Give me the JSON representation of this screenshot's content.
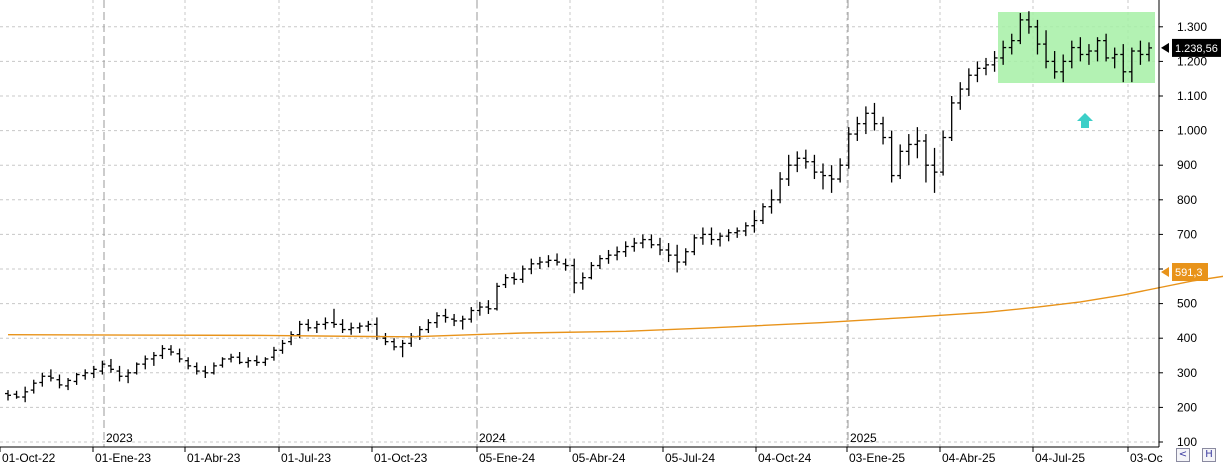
{
  "chart_data": {
    "type": "ohlc",
    "y_ticks": [
      "100",
      "200",
      "300",
      "400",
      "500",
      "600",
      "700",
      "800",
      "900",
      "1.000",
      "1.100",
      "1.200",
      "1.300"
    ],
    "ylim": [
      100,
      1340
    ],
    "x_ticks": [
      "01-Oct-22",
      "01-Ene-23",
      "01-Abr-23",
      "01-Jul-23",
      "01-Oct-23",
      "05-Ene-24",
      "05-Abr-24",
      "05-Jul-24",
      "04-Oct-24",
      "03-Ene-25",
      "04-Abr-25",
      "04-Jul-25",
      "03-Oc"
    ],
    "year_labels": [
      "2023",
      "2024",
      "2025"
    ],
    "grid": true,
    "last_price_label": "1.238,56",
    "moving_average_label": "591,3",
    "colors": {
      "bars": "#000000",
      "moving_average": "#e8931a",
      "range_box": "#a6f0a6",
      "arrow": "#3ccfc8",
      "grid": "#c8c8c8"
    },
    "series": [
      {
        "values": [
          [
            240,
            250,
            220,
            235
          ],
          [
            238,
            248,
            225,
            230
          ],
          [
            230,
            260,
            215,
            245
          ],
          [
            250,
            280,
            240,
            270
          ],
          [
            272,
            300,
            260,
            290
          ],
          [
            290,
            310,
            275,
            285
          ],
          [
            280,
            295,
            255,
            265
          ],
          [
            262,
            285,
            250,
            278
          ],
          [
            275,
            300,
            265,
            295
          ],
          [
            292,
            310,
            280,
            300
          ],
          [
            298,
            320,
            285,
            310
          ],
          [
            305,
            335,
            295,
            325
          ],
          [
            320,
            340,
            300,
            310
          ],
          [
            305,
            320,
            275,
            290
          ],
          [
            290,
            310,
            270,
            300
          ],
          [
            300,
            330,
            295,
            325
          ],
          [
            325,
            350,
            310,
            340
          ],
          [
            340,
            360,
            320,
            350
          ],
          [
            350,
            380,
            340,
            370
          ],
          [
            368,
            380,
            350,
            360
          ],
          [
            355,
            370,
            330,
            340
          ],
          [
            335,
            345,
            310,
            320
          ],
          [
            318,
            330,
            295,
            305
          ],
          [
            305,
            320,
            285,
            300
          ],
          [
            300,
            330,
            295,
            320
          ],
          [
            322,
            345,
            315,
            340
          ],
          [
            340,
            355,
            330,
            345
          ],
          [
            345,
            360,
            325,
            330
          ],
          [
            330,
            345,
            315,
            335
          ],
          [
            335,
            350,
            320,
            330
          ],
          [
            330,
            345,
            320,
            340
          ],
          [
            345,
            375,
            335,
            365
          ],
          [
            365,
            395,
            355,
            385
          ],
          [
            390,
            420,
            380,
            410
          ],
          [
            410,
            450,
            400,
            440
          ],
          [
            440,
            455,
            420,
            430
          ],
          [
            430,
            450,
            415,
            440
          ],
          [
            440,
            460,
            425,
            445
          ],
          [
            445,
            485,
            430,
            440
          ],
          [
            440,
            455,
            415,
            425
          ],
          [
            425,
            445,
            410,
            430
          ],
          [
            430,
            445,
            415,
            435
          ],
          [
            435,
            450,
            420,
            440
          ],
          [
            440,
            460,
            395,
            405
          ],
          [
            400,
            415,
            380,
            390
          ],
          [
            390,
            400,
            365,
            375
          ],
          [
            375,
            395,
            345,
            385
          ],
          [
            385,
            415,
            375,
            405
          ],
          [
            405,
            435,
            395,
            425
          ],
          [
            425,
            455,
            415,
            445
          ],
          [
            445,
            475,
            430,
            465
          ],
          [
            465,
            485,
            445,
            460
          ],
          [
            455,
            470,
            435,
            450
          ],
          [
            450,
            465,
            425,
            455
          ],
          [
            455,
            490,
            445,
            480
          ],
          [
            480,
            505,
            465,
            490
          ],
          [
            490,
            510,
            470,
            485
          ],
          [
            485,
            560,
            480,
            550
          ],
          [
            555,
            585,
            545,
            575
          ],
          [
            575,
            590,
            555,
            570
          ],
          [
            570,
            610,
            560,
            600
          ],
          [
            600,
            630,
            585,
            615
          ],
          [
            615,
            635,
            600,
            620
          ],
          [
            620,
            640,
            605,
            625
          ],
          [
            625,
            645,
            610,
            620
          ],
          [
            615,
            630,
            595,
            610
          ],
          [
            610,
            630,
            530,
            560
          ],
          [
            560,
            590,
            540,
            575
          ],
          [
            575,
            620,
            570,
            610
          ],
          [
            610,
            640,
            600,
            630
          ],
          [
            630,
            655,
            615,
            640
          ],
          [
            640,
            665,
            625,
            650
          ],
          [
            650,
            680,
            635,
            665
          ],
          [
            665,
            690,
            650,
            675
          ],
          [
            675,
            700,
            660,
            685
          ],
          [
            685,
            700,
            660,
            670
          ],
          [
            670,
            690,
            640,
            655
          ],
          [
            655,
            675,
            620,
            640
          ],
          [
            640,
            670,
            590,
            620
          ],
          [
            620,
            660,
            610,
            650
          ],
          [
            650,
            700,
            640,
            690
          ],
          [
            690,
            720,
            670,
            700
          ],
          [
            700,
            720,
            670,
            685
          ],
          [
            685,
            705,
            665,
            695
          ],
          [
            695,
            715,
            680,
            705
          ],
          [
            705,
            720,
            690,
            710
          ],
          [
            710,
            735,
            695,
            725
          ],
          [
            725,
            770,
            705,
            740
          ],
          [
            740,
            790,
            730,
            780
          ],
          [
            780,
            830,
            760,
            800
          ],
          [
            800,
            880,
            790,
            860
          ],
          [
            860,
            930,
            840,
            900
          ],
          [
            900,
            940,
            880,
            920
          ],
          [
            920,
            945,
            890,
            910
          ],
          [
            910,
            930,
            860,
            880
          ],
          [
            880,
            905,
            830,
            870
          ],
          [
            870,
            900,
            820,
            860
          ],
          [
            860,
            920,
            850,
            900
          ],
          [
            900,
            1010,
            890,
            990
          ],
          [
            990,
            1040,
            970,
            1020
          ],
          [
            1020,
            1070,
            990,
            1050
          ],
          [
            1050,
            1080,
            1000,
            1020
          ],
          [
            1020,
            1040,
            960,
            980
          ],
          [
            980,
            1000,
            850,
            870
          ],
          [
            870,
            960,
            860,
            940
          ],
          [
            940,
            990,
            900,
            960
          ],
          [
            960,
            1010,
            920,
            970
          ],
          [
            970,
            990,
            850,
            900
          ],
          [
            900,
            950,
            820,
            880
          ],
          [
            880,
            1000,
            870,
            980
          ],
          [
            980,
            1100,
            970,
            1080
          ],
          [
            1080,
            1140,
            1060,
            1120
          ],
          [
            1120,
            1180,
            1100,
            1160
          ],
          [
            1160,
            1200,
            1140,
            1180
          ],
          [
            1180,
            1210,
            1160,
            1190
          ],
          [
            1190,
            1230,
            1170,
            1210
          ],
          [
            1210,
            1260,
            1190,
            1240
          ],
          [
            1240,
            1280,
            1220,
            1260
          ],
          [
            1260,
            1340,
            1250,
            1320
          ],
          [
            1320,
            1345,
            1280,
            1300
          ],
          [
            1300,
            1320,
            1220,
            1250
          ],
          [
            1250,
            1290,
            1180,
            1200
          ],
          [
            1200,
            1230,
            1150,
            1170
          ],
          [
            1170,
            1220,
            1140,
            1200
          ],
          [
            1200,
            1260,
            1180,
            1240
          ],
          [
            1240,
            1270,
            1200,
            1220
          ],
          [
            1220,
            1250,
            1190,
            1230
          ],
          [
            1230,
            1270,
            1200,
            1260
          ],
          [
            1260,
            1280,
            1200,
            1210
          ],
          [
            1210,
            1240,
            1180,
            1220
          ],
          [
            1220,
            1250,
            1140,
            1170
          ],
          [
            1170,
            1240,
            1140,
            1230
          ],
          [
            1230,
            1260,
            1190,
            1220
          ],
          [
            1220,
            1255,
            1200,
            1239
          ]
        ]
      }
    ],
    "moving_average": [
      [
        0,
        410
      ],
      [
        30,
        408
      ],
      [
        42,
        405
      ],
      [
        47,
        404
      ],
      [
        60,
        415
      ],
      [
        72,
        420
      ],
      [
        82,
        430
      ],
      [
        95,
        445
      ],
      [
        105,
        460
      ],
      [
        114,
        475
      ],
      [
        120,
        490
      ],
      [
        125,
        505
      ],
      [
        130,
        525
      ],
      [
        134,
        545
      ],
      [
        138,
        565
      ],
      [
        142,
        580
      ],
      [
        145,
        591
      ]
    ]
  }
}
